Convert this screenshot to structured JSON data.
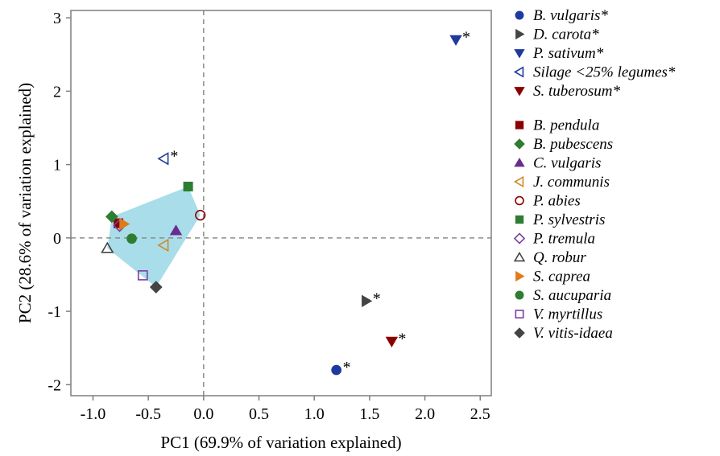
{
  "chart_data": {
    "type": "scatter",
    "title": "",
    "xlabel": "PC1 (69.9% of variation explained)",
    "ylabel": "PC2 (28.6% of variation explained)",
    "xlim": [
      -1.2,
      2.6
    ],
    "ylim": [
      -2.15,
      3.1
    ],
    "x_ticks": [
      "-1.0",
      "-0.5",
      "0.0",
      "0.5",
      "1.0",
      "1.5",
      "2.0",
      "2.5"
    ],
    "y_ticks": [
      "-2",
      "-1",
      "0",
      "1",
      "2",
      "3"
    ],
    "x_tick_values": [
      -1.0,
      -0.5,
      0.0,
      0.5,
      1.0,
      1.5,
      2.0,
      2.5
    ],
    "y_tick_values": [
      -2,
      -1,
      0,
      1,
      2,
      3
    ],
    "reference_lines": {
      "x": 0,
      "y": 0
    },
    "grid": false,
    "legend_position": "right",
    "hull_color": "#a8dde9",
    "hull_series": [
      "B. pendula",
      "B. pubescens",
      "C. vulgaris",
      "J. communis",
      "P. abies",
      "P. sylvestris",
      "P. tremula",
      "Q. robur",
      "S. caprea",
      "S. aucuparia",
      "V. myrtillus",
      "V. vitis-idaea"
    ],
    "series": [
      {
        "name": "B. vulgaris*",
        "marker": "circle",
        "filled": true,
        "color": "#1f3a9e",
        "x": 1.2,
        "y": -1.8,
        "starred": true
      },
      {
        "name": "D. carota*",
        "marker": "triangle-right",
        "filled": true,
        "color": "#444444",
        "x": 1.47,
        "y": -0.86,
        "starred": true
      },
      {
        "name": "P. sativum*",
        "marker": "triangle-down",
        "filled": true,
        "color": "#1f3a9e",
        "x": 2.28,
        "y": 2.7,
        "starred": true
      },
      {
        "name": "Silage <25% legumes*",
        "marker": "triangle-left",
        "filled": false,
        "color": "#1f3a9e",
        "x": -0.36,
        "y": 1.08,
        "starred": true
      },
      {
        "name": "S. tuberosum*",
        "marker": "triangle-down",
        "filled": true,
        "color": "#8b0000",
        "x": 1.7,
        "y": -1.41,
        "starred": true
      },
      {
        "name": "B. pendula",
        "marker": "square",
        "filled": true,
        "color": "#8b0000",
        "x": -0.77,
        "y": 0.2,
        "starred": false
      },
      {
        "name": "B. pubescens",
        "marker": "diamond",
        "filled": true,
        "color": "#2e7d32",
        "x": -0.83,
        "y": 0.29,
        "starred": false
      },
      {
        "name": "C. vulgaris",
        "marker": "triangle-up",
        "filled": true,
        "color": "#6a2c91",
        "x": -0.25,
        "y": 0.1,
        "starred": false
      },
      {
        "name": "J. communis",
        "marker": "triangle-left",
        "filled": false,
        "color": "#d08a2a",
        "x": -0.36,
        "y": -0.1,
        "starred": false
      },
      {
        "name": "P. abies",
        "marker": "circle",
        "filled": false,
        "color": "#8b0000",
        "x": -0.03,
        "y": 0.31,
        "starred": false
      },
      {
        "name": "P. sylvestris",
        "marker": "square",
        "filled": true,
        "color": "#2e7d32",
        "x": -0.14,
        "y": 0.7,
        "starred": false
      },
      {
        "name": "P. tremula",
        "marker": "diamond",
        "filled": false,
        "color": "#7b3fa0",
        "x": -0.76,
        "y": 0.17,
        "starred": false
      },
      {
        "name": "Q. robur",
        "marker": "triangle-up",
        "filled": false,
        "color": "#444444",
        "x": -0.87,
        "y": -0.14,
        "starred": false
      },
      {
        "name": "S. caprea",
        "marker": "triangle-right",
        "filled": true,
        "color": "#e07b1a",
        "x": -0.72,
        "y": 0.19,
        "starred": false
      },
      {
        "name": "S. aucuparia",
        "marker": "circle",
        "filled": true,
        "color": "#2e7d32",
        "x": -0.65,
        "y": -0.01,
        "starred": false
      },
      {
        "name": "V. myrtillus",
        "marker": "square",
        "filled": false,
        "color": "#7b3fa0",
        "x": -0.55,
        "y": -0.51,
        "starred": false
      },
      {
        "name": "V. vitis-idaea",
        "marker": "diamond",
        "filled": true,
        "color": "#444444",
        "x": -0.43,
        "y": -0.67,
        "starred": false
      }
    ]
  }
}
